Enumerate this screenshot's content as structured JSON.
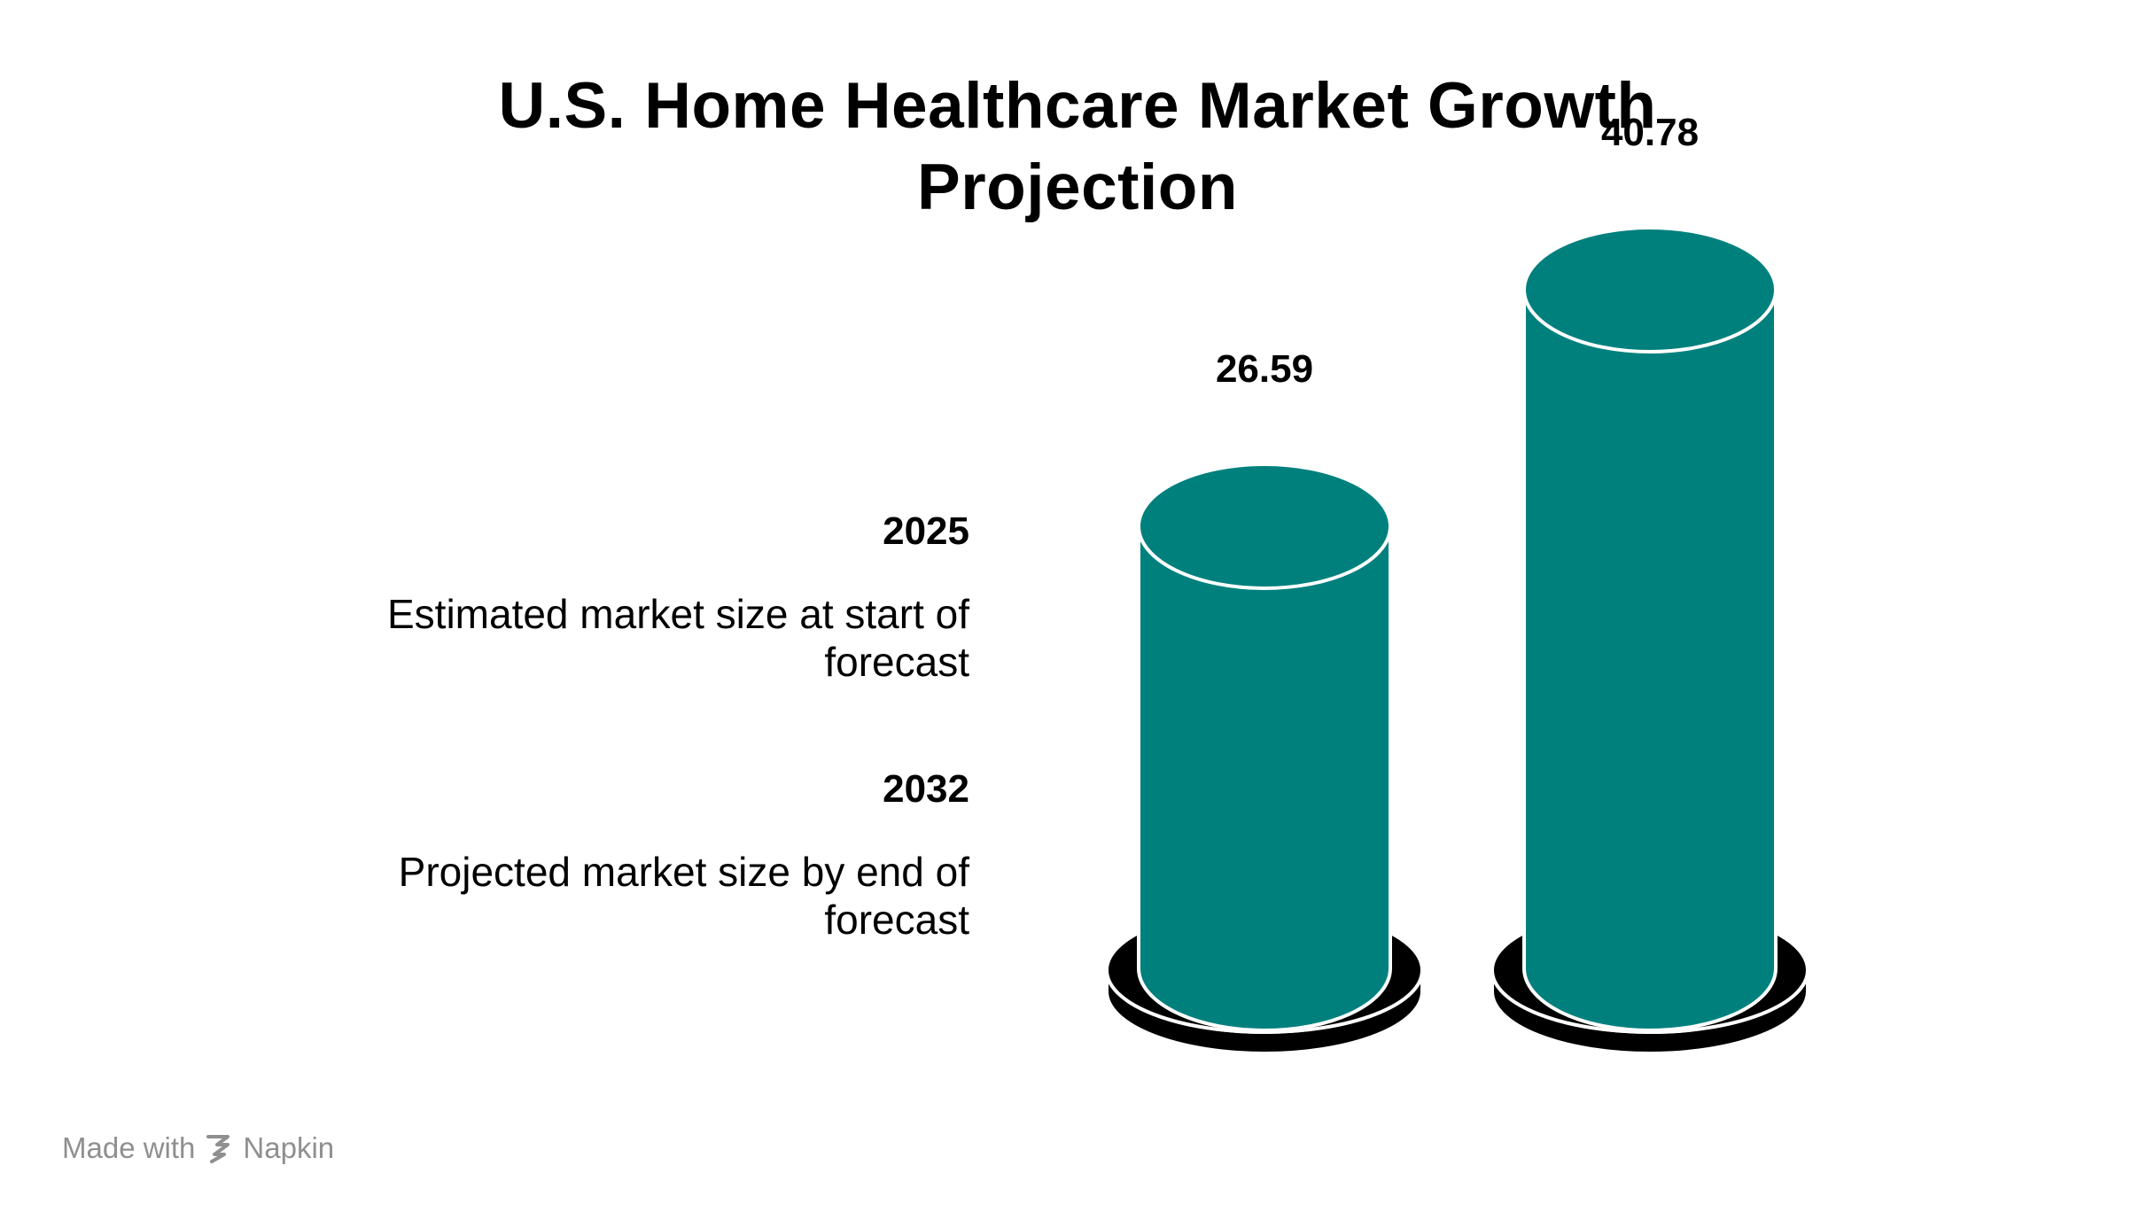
{
  "title_lines": [
    "U.S. Home Healthcare Market Growth",
    "Projection"
  ],
  "legend": [
    {
      "year": "2025",
      "description": "Estimated market size at start of forecast"
    },
    {
      "year": "2032",
      "description": "Projected market size by end of forecast"
    }
  ],
  "chart_data": {
    "type": "bar",
    "style": "3d-cylinder",
    "categories": [
      "2025",
      "2032"
    ],
    "values": [
      26.59,
      40.78
    ],
    "value_labels": [
      "26.59",
      "40.78"
    ],
    "title": "U.S. Home Healthcare Market Growth Projection",
    "xlabel": "",
    "ylabel": "",
    "grid": false,
    "legend_position": "left",
    "colors": {
      "bar": "#00807D",
      "base": "#000000",
      "outline": "#ffffff"
    }
  },
  "watermark": {
    "prefix": "Made with",
    "brand": "Napkin",
    "icon": "napkin-logo-icon"
  }
}
